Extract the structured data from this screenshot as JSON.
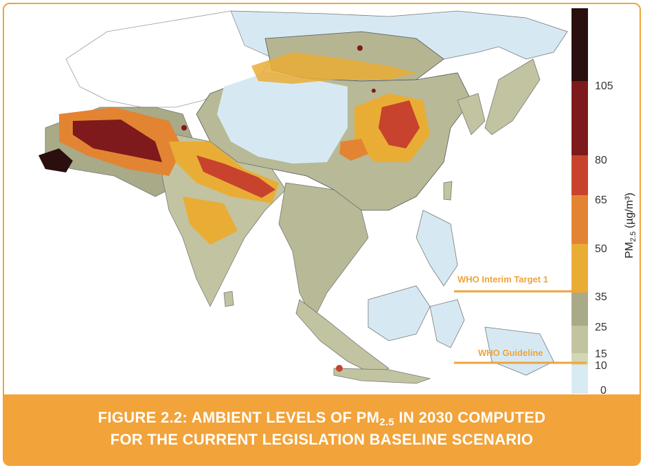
{
  "colors": {
    "accent": "#f2a33a",
    "frame": "#f0a33a",
    "who_line": "#f0a33a",
    "ocean": "#ffffff",
    "land_clean": "#d6e9f3"
  },
  "legend": {
    "unit_prefix": "PM",
    "unit_sub": "2.5",
    "unit_suffix": " (µg/m³)",
    "bands": [
      {
        "from": 0,
        "to": 10,
        "color": "#d8ebf4"
      },
      {
        "from": 10,
        "to": 15,
        "color": "#d2d8b4"
      },
      {
        "from": 15,
        "to": 25,
        "color": "#c2c3a0"
      },
      {
        "from": 25,
        "to": 35,
        "color": "#a8aa88"
      },
      {
        "from": 35,
        "to": 50,
        "color": "#e9ad35"
      },
      {
        "from": 50,
        "to": 65,
        "color": "#e38433"
      },
      {
        "from": 65,
        "to": 80,
        "color": "#c7432d"
      },
      {
        "from": 80,
        "to": 105,
        "color": "#7e1a1c"
      },
      {
        "from": 105,
        "to": 130,
        "color": "#2a0f0e"
      }
    ],
    "ticks": [
      "0",
      "10",
      "15",
      "25",
      "35",
      "50",
      "65",
      "80",
      "105"
    ]
  },
  "annotations": {
    "interim_target": "WHO Interim Target 1",
    "guideline": "WHO Guideline"
  },
  "caption": {
    "line1_prefix": "FIGURE 2.2: AMBIENT LEVELS OF PM",
    "line1_sub": "2.5",
    "line1_suffix": " IN 2030 COMPUTED",
    "line2": "FOR THE CURRENT LEGISLATION BASELINE SCENARIO"
  }
}
